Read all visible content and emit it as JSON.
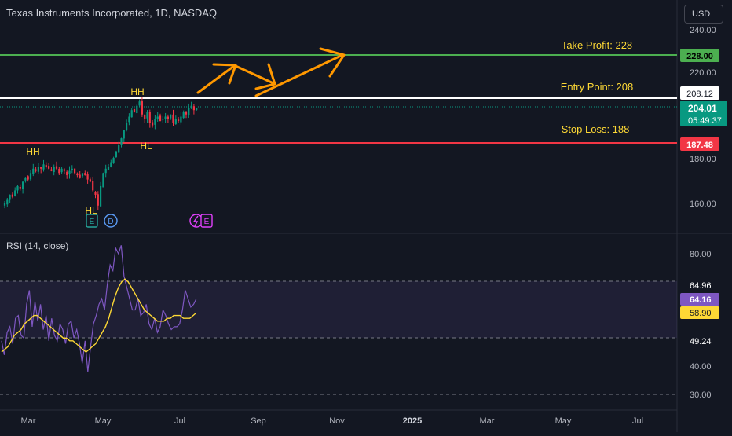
{
  "header": {
    "symbol_title": "Texas Instruments Incorporated, 1D, NASDAQ",
    "currency": "USD"
  },
  "price_axis": {
    "ticks": [
      "240.00",
      "220.00",
      "180.00",
      "160.00"
    ]
  },
  "rsi_axis": {
    "ticks": [
      "80.00",
      "40.00",
      "30.00"
    ]
  },
  "time_axis": {
    "labels": [
      {
        "text": "Mar",
        "bold": false
      },
      {
        "text": "May",
        "bold": false
      },
      {
        "text": "Jul",
        "bold": false
      },
      {
        "text": "Sep",
        "bold": false
      },
      {
        "text": "Nov",
        "bold": false
      },
      {
        "text": "2025",
        "bold": true
      },
      {
        "text": "Mar",
        "bold": false
      },
      {
        "text": "May",
        "bold": false
      },
      {
        "text": "Jul",
        "bold": false
      }
    ]
  },
  "levels": {
    "take_profit": {
      "label": "Take Profit: 228",
      "badge": "228.00",
      "value": 228,
      "color": "#4caf50"
    },
    "entry": {
      "label": "Entry Point: 208",
      "badge": "208.12",
      "value": 208.12,
      "color": "#ffffff"
    },
    "stop_loss": {
      "label": "Stop Loss: 188",
      "badge": "187.48",
      "value": 187.48,
      "color": "#f23645"
    }
  },
  "last_price": {
    "value": "204.01",
    "countdown": "05:49:37",
    "color": "#089981"
  },
  "annotations": {
    "hh_left": "HH",
    "hh_top": "HH",
    "hl": "HL",
    "hl_low": "HL"
  },
  "event_markers": {
    "earnings": "E",
    "dividend": "D"
  },
  "rsi": {
    "title": "RSI (14, close)",
    "value_badge": "64.16",
    "ma_badge": "58.90",
    "upper_badge": "64.96",
    "lower_badge": "49.24",
    "colors": {
      "rsi": "#7e57c2",
      "ma": "#fdd835"
    }
  },
  "chart_data": [
    {
      "type": "candlestick",
      "title": "Texas Instruments Incorporated, 1D, NASDAQ",
      "ylim": [
        152,
        244
      ],
      "last_value": 204.01,
      "levels": [
        228,
        208.12,
        187.48
      ],
      "closes": [
        160,
        162,
        164,
        163,
        166,
        168,
        167,
        170,
        172,
        171,
        174,
        176,
        175,
        177,
        176,
        178,
        177,
        176,
        175,
        177,
        176,
        174,
        176,
        175,
        173,
        175,
        176,
        174,
        173,
        172,
        174,
        173,
        171,
        170,
        166,
        164,
        159,
        168,
        174,
        176,
        177,
        179,
        181,
        184,
        187,
        190,
        194,
        197,
        200,
        203,
        202,
        205,
        207,
        201,
        199,
        202,
        197,
        196,
        199,
        200,
        198,
        199,
        200,
        199,
        201,
        197,
        199,
        198,
        200,
        202,
        201,
        204,
        205,
        203,
        204
      ]
    },
    {
      "type": "line",
      "title": "RSI (14, close)",
      "ylim": [
        28,
        84
      ],
      "series": [
        {
          "name": "RSI",
          "values": [
            49,
            44,
            52,
            54,
            48,
            57,
            58,
            51,
            50,
            62,
            67,
            54,
            63,
            56,
            62,
            53,
            58,
            49,
            57,
            51,
            49,
            55,
            53,
            48,
            55,
            56,
            50,
            53,
            48,
            41,
            49,
            38,
            47,
            55,
            58,
            62,
            64,
            60,
            69,
            76,
            74,
            82,
            80,
            83,
            72,
            68,
            64,
            60,
            60,
            64,
            58,
            59,
            62,
            55,
            53,
            57,
            52,
            54,
            60,
            58,
            55,
            53,
            54,
            54,
            55,
            60,
            67,
            64,
            61,
            62,
            64
          ]
        },
        {
          "name": "RSI-based MA",
          "values": [
            45,
            46,
            47,
            49,
            51,
            52,
            53,
            55,
            56,
            57,
            58,
            58,
            57,
            56,
            55,
            54,
            53,
            52,
            51,
            50,
            50,
            49,
            49,
            48,
            47,
            46,
            45,
            46,
            47,
            48,
            50,
            52,
            54,
            57,
            61,
            65,
            68,
            70,
            71,
            70,
            68,
            66,
            64,
            62,
            60,
            59,
            58,
            57,
            56,
            56,
            56,
            57,
            57,
            58,
            58,
            58,
            57,
            57,
            57,
            58,
            59
          ]
        }
      ],
      "bands": [
        64.96,
        49.24
      ]
    }
  ]
}
